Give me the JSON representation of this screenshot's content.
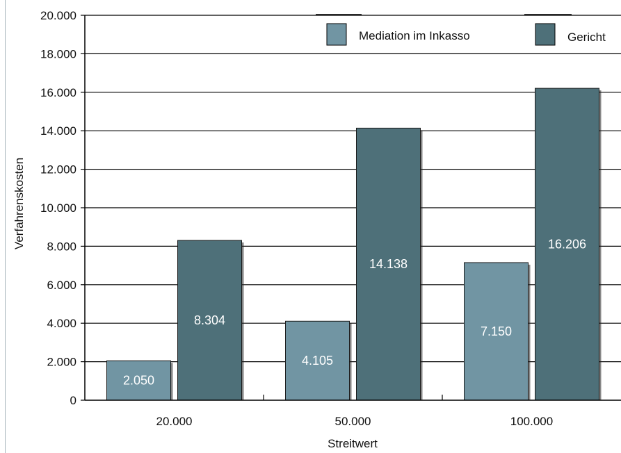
{
  "chart_data": {
    "type": "bar",
    "title": "",
    "xlabel": "Streitwert",
    "ylabel": "Verfahrenskosten",
    "categories": [
      "20.000",
      "50.000",
      "100.000"
    ],
    "ylim": [
      0,
      20000
    ],
    "yticks": [
      "0",
      "2.000",
      "4.000",
      "6.000",
      "8.000",
      "10.000",
      "12.000",
      "14.000",
      "16.000",
      "18.000",
      "20.000"
    ],
    "grid": true,
    "legend_position": "top-right",
    "series": [
      {
        "name": "Mediation im Inkasso",
        "color": "#7195a3",
        "values": [
          2050,
          4105,
          7150
        ],
        "labels": [
          "2.050",
          "4.105",
          "7.150"
        ]
      },
      {
        "name": "Gericht",
        "color": "#4e7079",
        "values": [
          8304,
          14138,
          16206
        ],
        "labels": [
          "8.304",
          "14.138",
          "16.206"
        ]
      }
    ]
  }
}
